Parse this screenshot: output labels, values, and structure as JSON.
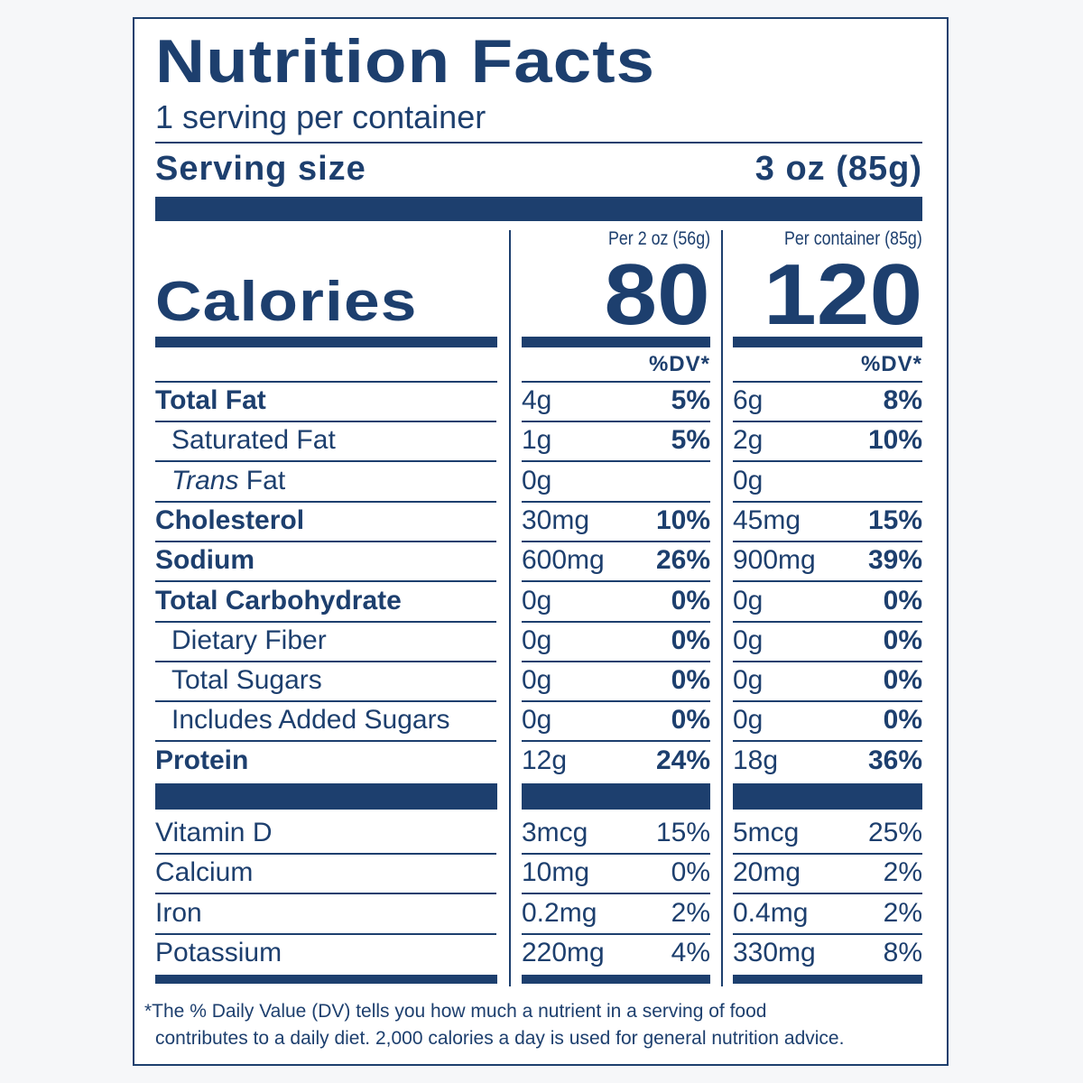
{
  "title": "Nutrition Facts",
  "servings": "1 serving per container",
  "serving_size_label": "Serving size",
  "serving_size_value": "3 oz (85g)",
  "columns": [
    {
      "header": "Per 2 oz (56g)",
      "calories": "80",
      "dv_label": "%DV*"
    },
    {
      "header": "Per container (85g)",
      "calories": "120",
      "dv_label": "%DV*"
    }
  ],
  "calories_label": "Calories",
  "nutrients": [
    {
      "name": "Total Fat",
      "bold": true,
      "indent": false,
      "c1": [
        "4g",
        "5%"
      ],
      "c2": [
        "6g",
        "8%"
      ]
    },
    {
      "name": "Saturated Fat",
      "bold": false,
      "indent": true,
      "c1": [
        "1g",
        "5%"
      ],
      "c2": [
        "2g",
        "10%"
      ]
    },
    {
      "name": "Trans Fat",
      "italic_prefix": "Trans",
      "bold": false,
      "indent": true,
      "c1": [
        "0g",
        ""
      ],
      "c2": [
        "0g",
        ""
      ]
    },
    {
      "name": "Cholesterol",
      "bold": true,
      "indent": false,
      "c1": [
        "30mg",
        "10%"
      ],
      "c2": [
        "45mg",
        "15%"
      ]
    },
    {
      "name": "Sodium",
      "bold": true,
      "indent": false,
      "c1": [
        "600mg",
        "26%"
      ],
      "c2": [
        "900mg",
        "39%"
      ]
    },
    {
      "name": "Total Carbohydrate",
      "bold": true,
      "indent": false,
      "c1": [
        "0g",
        "0%"
      ],
      "c2": [
        "0g",
        "0%"
      ]
    },
    {
      "name": "Dietary Fiber",
      "bold": false,
      "indent": true,
      "c1": [
        "0g",
        "0%"
      ],
      "c2": [
        "0g",
        "0%"
      ]
    },
    {
      "name": "Total Sugars",
      "bold": false,
      "indent": true,
      "c1": [
        "0g",
        "0%"
      ],
      "c2": [
        "0g",
        "0%"
      ]
    },
    {
      "name": "Includes Added Sugars",
      "bold": false,
      "indent": true,
      "c1": [
        "0g",
        "0%"
      ],
      "c2": [
        "0g",
        "0%"
      ]
    },
    {
      "name": "Protein",
      "bold": true,
      "indent": false,
      "c1": [
        "12g",
        "24%"
      ],
      "c2": [
        "18g",
        "36%"
      ]
    }
  ],
  "vitamins": [
    {
      "name": "Vitamin D",
      "c1": [
        "3mcg",
        "15%"
      ],
      "c2": [
        "5mcg",
        "25%"
      ]
    },
    {
      "name": "Calcium",
      "c1": [
        "10mg",
        "0%"
      ],
      "c2": [
        "20mg",
        "2%"
      ]
    },
    {
      "name": "Iron",
      "c1": [
        "0.2mg",
        "2%"
      ],
      "c2": [
        "0.4mg",
        "2%"
      ]
    },
    {
      "name": "Potassium",
      "c1": [
        "220mg",
        "4%"
      ],
      "c2": [
        "330mg",
        "8%"
      ]
    }
  ],
  "footnote": [
    "*The % Daily Value (DV) tells you how much a nutrient in a serving of food",
    "contributes to a daily diet. 2,000 calories a day is used for general nutrition advice."
  ],
  "colors": {
    "ink": "#1d3f6e",
    "background": "#ffffff"
  }
}
